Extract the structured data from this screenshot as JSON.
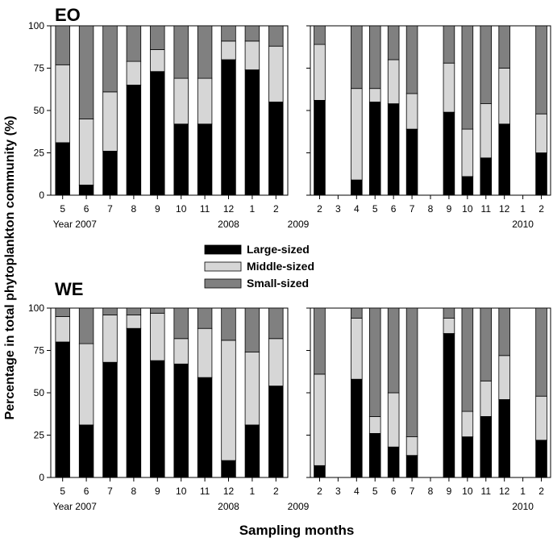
{
  "chart_data": {
    "type": "bar",
    "stacked": true,
    "ylabel": "Percentage in total phytoplankton community (%)",
    "xlabel": "Sampling months",
    "ylim": [
      0,
      100
    ],
    "yticks": [
      0,
      25,
      50,
      75,
      100
    ],
    "legend": [
      {
        "name": "Large-sized",
        "color": "#000000"
      },
      {
        "name": "Middle-sized",
        "color": "#d6d6d6"
      },
      {
        "name": "Small-sized",
        "color": "#808080"
      }
    ],
    "panels": [
      {
        "title": "EO",
        "subpanels": [
          {
            "months": [
              "5",
              "6",
              "7",
              "8",
              "9",
              "10",
              "11",
              "12",
              "1",
              "2"
            ],
            "year_labels": [
              {
                "text": "Year 2007",
                "at": 0
              },
              {
                "text": "2008",
                "at": 7
              }
            ],
            "large": [
              31,
              6,
              26,
              65,
              73,
              42,
              42,
              80,
              74,
              55
            ],
            "middle": [
              46,
              39,
              35,
              14,
              13,
              27,
              27,
              11,
              17,
              33
            ],
            "small": [
              23,
              55,
              39,
              21,
              14,
              31,
              31,
              9,
              9,
              12
            ]
          },
          {
            "months": [
              "2",
              "3",
              "4",
              "5",
              "6",
              "7",
              "8",
              "9",
              "10",
              "11",
              "12",
              "1",
              "2"
            ],
            "year_labels": [
              {
                "text": "2009",
                "at": 0
              },
              {
                "text": "2010",
                "at": 11
              }
            ],
            "large": [
              56,
              null,
              9,
              55,
              54,
              39,
              null,
              49,
              11,
              22,
              42,
              null,
              25
            ],
            "middle": [
              33,
              null,
              54,
              8,
              26,
              21,
              null,
              29,
              28,
              32,
              33,
              null,
              23
            ],
            "small": [
              11,
              null,
              37,
              37,
              20,
              40,
              null,
              22,
              61,
              46,
              25,
              null,
              52
            ]
          }
        ]
      },
      {
        "title": "WE",
        "subpanels": [
          {
            "months": [
              "5",
              "6",
              "7",
              "8",
              "9",
              "10",
              "11",
              "12",
              "1",
              "2"
            ],
            "year_labels": [
              {
                "text": "Year 2007",
                "at": 0
              },
              {
                "text": "2008",
                "at": 7
              }
            ],
            "large": [
              80,
              31,
              68,
              88,
              69,
              67,
              59,
              10,
              31,
              54
            ],
            "middle": [
              15,
              48,
              28,
              8,
              28,
              15,
              29,
              71,
              43,
              28
            ],
            "small": [
              5,
              21,
              4,
              4,
              3,
              18,
              12,
              19,
              26,
              18
            ]
          },
          {
            "months": [
              "2",
              "3",
              "4",
              "5",
              "6",
              "7",
              "8",
              "9",
              "10",
              "11",
              "12",
              "1",
              "2"
            ],
            "year_labels": [
              {
                "text": "2009",
                "at": 0
              },
              {
                "text": "2010",
                "at": 11
              }
            ],
            "large": [
              7,
              null,
              58,
              26,
              18,
              13,
              null,
              85,
              24,
              36,
              46,
              null,
              22
            ],
            "middle": [
              54,
              null,
              36,
              10,
              32,
              11,
              null,
              9,
              15,
              21,
              26,
              null,
              26
            ],
            "small": [
              39,
              null,
              6,
              64,
              50,
              76,
              null,
              6,
              61,
              43,
              28,
              null,
              52
            ]
          }
        ]
      }
    ]
  }
}
